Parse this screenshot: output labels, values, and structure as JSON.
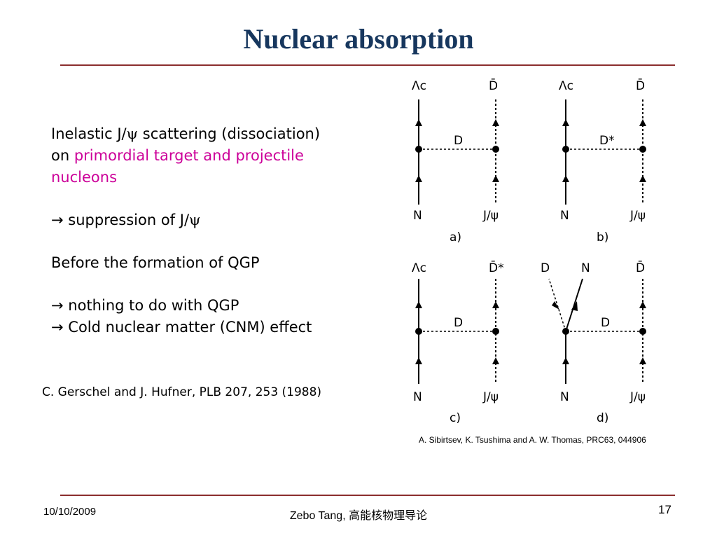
{
  "title": "Nuclear absorption",
  "body": {
    "line1_prefix": "Inelastic J/",
    "psi": "ψ",
    "line1_suffix": " scattering (dissociation)",
    "line2_prefix": "on ",
    "line2_highlight": "primordial target and projectile",
    "line3_highlight": "nucleons",
    "arrow": "→",
    "bullet1_prefix": " suppression of J/",
    "before_formation": "Before the formation of QGP",
    "bullet2": " nothing to do with QGP",
    "bullet3": " Cold nuclear matter (CNM) effect"
  },
  "reference_left": "C. Gerschel and J. Hufner, PLB 207, 253 (1988)",
  "reference_right": "A. Sibirtsev, K. Tsushima and A. W. Thomas, PRC63, 044906",
  "diagram_labels": {
    "lambda_c": "Λc",
    "d_bar": "D̄",
    "d_bar_star": "D̄*",
    "d": "D",
    "d_star": "D*",
    "n": "N",
    "j_psi": "J/ψ",
    "panel_a": "a)",
    "panel_b": "b)",
    "panel_c": "c)",
    "panel_d": "d)"
  },
  "footer": {
    "date": "10/10/2009",
    "author": "Zebo Tang, ",
    "course": "高能核物理导论",
    "page_number": "17"
  },
  "colors": {
    "title": "#17375e",
    "rule": "#8b2e2e",
    "highlight": "#cc0099"
  }
}
